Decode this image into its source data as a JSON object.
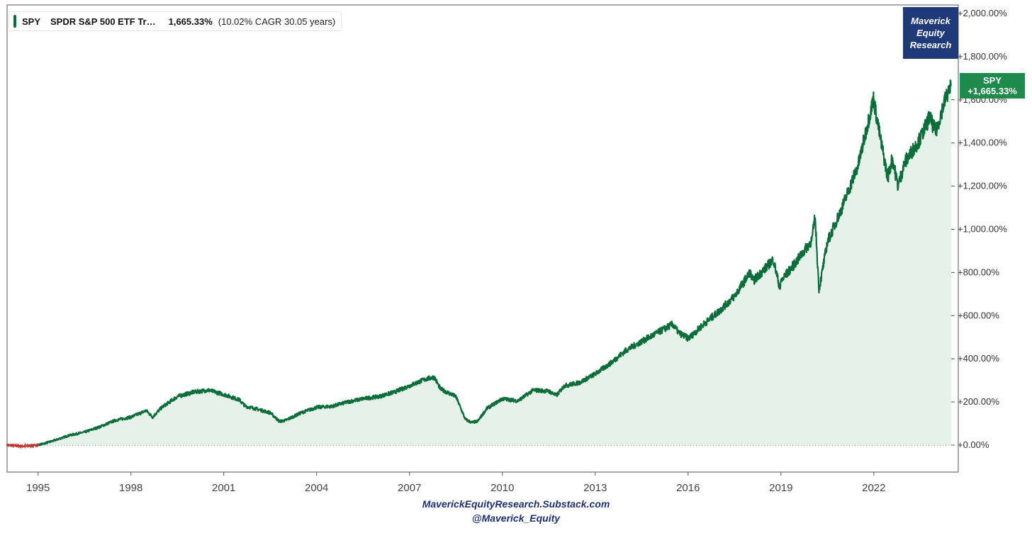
{
  "legend": {
    "ticker": "SPY",
    "name": "SPDR S&P 500 ETF Tr…",
    "total_return": "1,665.33%",
    "cagr_text": "(10.02% CAGR 30.05 years)"
  },
  "brand": {
    "line1": "Maverick",
    "line2": "Equity",
    "line3": "Research"
  },
  "badge": {
    "ticker": "SPY",
    "value": "+1,665.33%"
  },
  "footer": {
    "line1": "MaverickEquityResearch.Substack.com",
    "line2": "@Maverick_Equity"
  },
  "colors": {
    "line": "#0b6e3a",
    "negative": "#d0302f",
    "fill": "#e6f1ea",
    "badge": "#1e8a4b",
    "brand": "#1f3a78"
  },
  "chart_data": {
    "type": "area",
    "series": [
      {
        "name": "SPY",
        "x": [
          1994.0,
          1994.5,
          1995.0,
          1995.5,
          1996.0,
          1996.5,
          1997.0,
          1997.5,
          1998.0,
          1998.5,
          1998.7,
          1999.0,
          1999.5,
          2000.0,
          2000.5,
          2001.0,
          2001.5,
          2001.7,
          2002.0,
          2002.5,
          2002.8,
          2003.0,
          2003.5,
          2004.0,
          2004.5,
          2005.0,
          2005.5,
          2006.0,
          2006.5,
          2007.0,
          2007.5,
          2007.8,
          2008.0,
          2008.5,
          2008.8,
          2009.0,
          2009.2,
          2009.5,
          2010.0,
          2010.5,
          2011.0,
          2011.5,
          2011.75,
          2012.0,
          2012.5,
          2013.0,
          2013.5,
          2014.0,
          2014.5,
          2015.0,
          2015.5,
          2015.7,
          2016.0,
          2016.1,
          2016.5,
          2017.0,
          2017.5,
          2018.0,
          2018.1,
          2018.5,
          2018.75,
          2018.98,
          2019.0,
          2019.5,
          2020.0,
          2020.1,
          2020.23,
          2020.5,
          2021.0,
          2021.5,
          2021.99,
          2022.2,
          2022.45,
          2022.6,
          2022.78,
          2023.0,
          2023.5,
          2023.8,
          2024.0,
          2024.3,
          2024.5
        ],
        "values": [
          0,
          -5,
          0,
          20,
          45,
          60,
          85,
          115,
          130,
          160,
          130,
          175,
          225,
          245,
          255,
          235,
          210,
          180,
          170,
          150,
          110,
          115,
          150,
          175,
          180,
          200,
          215,
          225,
          245,
          275,
          305,
          315,
          260,
          225,
          120,
          105,
          110,
          170,
          215,
          205,
          255,
          250,
          230,
          275,
          290,
          330,
          380,
          440,
          480,
          520,
          560,
          520,
          495,
          505,
          560,
          620,
          690,
          800,
          760,
          820,
          860,
          720,
          760,
          850,
          950,
          1060,
          720,
          940,
          1110,
          1300,
          1605,
          1430,
          1240,
          1330,
          1200,
          1310,
          1420,
          1520,
          1450,
          1600,
          1665
        ]
      }
    ],
    "xlim": [
      1994.0,
      2024.5
    ],
    "ylim": [
      -100,
      2000
    ],
    "x_ticks": [
      1995,
      1998,
      2001,
      2004,
      2007,
      2010,
      2013,
      2016,
      2019,
      2022
    ],
    "x_tick_labels": [
      "1995",
      "1998",
      "2001",
      "2004",
      "2007",
      "2010",
      "2013",
      "2016",
      "2019",
      "2022"
    ],
    "y_ticks": [
      0,
      200,
      400,
      600,
      800,
      1000,
      1200,
      1400,
      1600,
      1800,
      2000
    ],
    "y_tick_labels": [
      "+0.00%",
      "+200.00%",
      "+400.00%",
      "+600.00%",
      "+800.00%",
      "+1,000.00%",
      "+1,200.00%",
      "+1,400.00%",
      "+1,600.00%",
      "+1,800.00%",
      "+2,000.00%"
    ],
    "y_axis_side": "right",
    "grid": false,
    "legend_position": "top-left"
  }
}
